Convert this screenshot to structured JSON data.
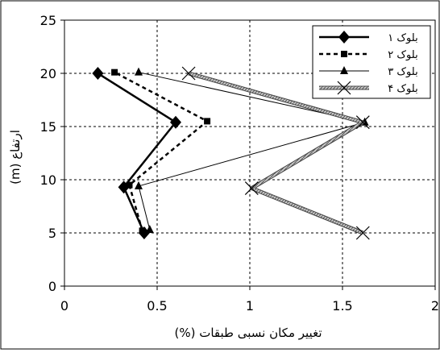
{
  "chart_data": {
    "type": "line",
    "xlabel": "تغییر مکان نسبی طبقات (%)",
    "ylabel": "ارتفاع (m)",
    "xlim": [
      0,
      2
    ],
    "ylim": [
      0,
      25
    ],
    "xticks": [
      "0",
      "0.5",
      "1",
      "1.5",
      "2"
    ],
    "yticks": [
      "0",
      "5",
      "10",
      "15",
      "20",
      "25"
    ],
    "grid": "dashed-horizontal-and-vertical",
    "legend_position": "top-right",
    "series": [
      {
        "name": "بلوک ۱",
        "style": "solid-thick",
        "marker": "diamond",
        "color": "#000000",
        "points": [
          [
            0.43,
            5
          ],
          [
            0.32,
            9.3
          ],
          [
            0.6,
            15.4
          ],
          [
            0.18,
            20
          ]
        ]
      },
      {
        "name": "بلوک ۲",
        "style": "dashed-thick",
        "marker": "square",
        "color": "#000000",
        "points": [
          [
            0.42,
            5.2
          ],
          [
            0.35,
            9.5
          ],
          [
            0.77,
            15.5
          ],
          [
            0.27,
            20.1
          ]
        ]
      },
      {
        "name": "بلوک ۳",
        "style": "solid-thin",
        "marker": "triangle",
        "color": "#000000",
        "points": [
          [
            0.46,
            5.3
          ],
          [
            0.4,
            9.4
          ],
          [
            1.62,
            15.4
          ],
          [
            0.4,
            20.1
          ]
        ]
      },
      {
        "name": "بلوک ۴",
        "style": "hatched-gray",
        "marker": "x",
        "color": "#808080",
        "points": [
          [
            1.61,
            5
          ],
          [
            1.01,
            9.2
          ],
          [
            1.61,
            15.4
          ],
          [
            0.67,
            20
          ]
        ]
      }
    ]
  }
}
